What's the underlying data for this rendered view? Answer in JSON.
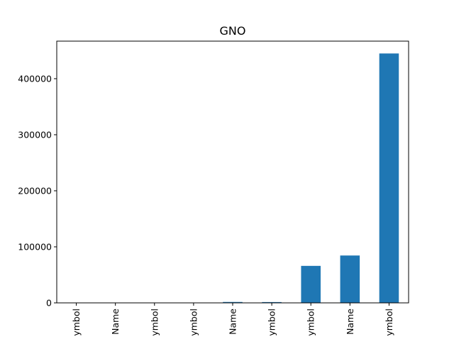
{
  "chart_data": {
    "type": "bar",
    "title": "GNO",
    "xlabel": "",
    "ylabel": "",
    "categories": [
      "ymbol",
      "Name",
      "ymbol",
      "ymbol",
      "Name",
      "ymbol",
      "ymbol",
      "Name",
      "ymbol"
    ],
    "values": [
      150,
      250,
      350,
      450,
      1600,
      1400,
      66000,
      84500,
      445000
    ],
    "ylim": [
      0,
      467000
    ],
    "yticks": [
      0,
      100000,
      200000,
      300000,
      400000
    ],
    "ytick_labels": [
      "0",
      "100000",
      "200000",
      "300000",
      "400000"
    ],
    "bar_color": "#1f77b4",
    "grid": false,
    "legend": "none"
  }
}
